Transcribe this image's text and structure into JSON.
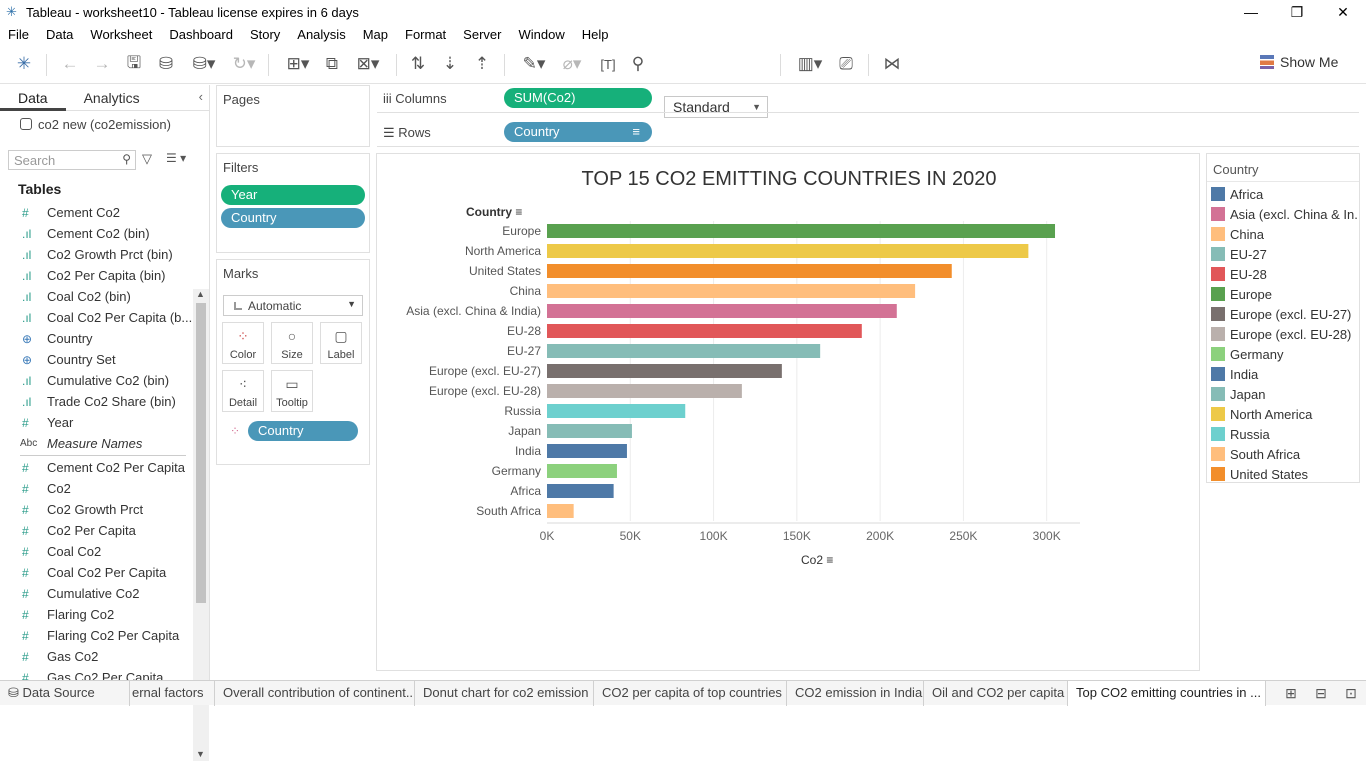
{
  "window": {
    "title": "Tableau - worksheet10 - Tableau license expires in 6 days"
  },
  "menu": [
    "File",
    "Data",
    "Worksheet",
    "Dashboard",
    "Story",
    "Analysis",
    "Map",
    "Format",
    "Server",
    "Window",
    "Help"
  ],
  "toolbar": {
    "fit": "Standard",
    "show_me": "Show Me"
  },
  "left_panel": {
    "tabs": [
      "Data",
      "Analytics"
    ],
    "datasource": "co2 new (co2emission)",
    "search_placeholder": "Search",
    "tables_label": "Tables",
    "fields_dim": [
      {
        "type": "#",
        "name": "Cement Co2"
      },
      {
        "type": "bin",
        "name": "Cement Co2 (bin)"
      },
      {
        "type": "bin",
        "name": "Co2 Growth Prct (bin)"
      },
      {
        "type": "bin",
        "name": "Co2 Per Capita (bin)"
      },
      {
        "type": "bin",
        "name": "Coal Co2 (bin)"
      },
      {
        "type": "bin",
        "name": "Coal Co2 Per Capita (b..."
      },
      {
        "type": "geo",
        "name": "Country"
      },
      {
        "type": "geo",
        "name": "Country Set"
      },
      {
        "type": "bin",
        "name": "Cumulative Co2 (bin)"
      },
      {
        "type": "bin",
        "name": "Trade Co2 Share (bin)"
      },
      {
        "type": "#",
        "name": "Year"
      },
      {
        "type": "Abc",
        "name": "Measure Names"
      }
    ],
    "fields_meas": [
      "Cement Co2 Per Capita",
      "Co2",
      "Co2 Growth Prct",
      "Co2 Per Capita",
      "Coal Co2",
      "Coal Co2 Per Capita",
      "Cumulative Co2",
      "Flaring Co2",
      "Flaring Co2 Per Capita",
      "Gas Co2",
      "Gas Co2 Per Capita"
    ]
  },
  "cards": {
    "pages": "Pages",
    "filters": "Filters",
    "filter_pills": [
      "Year",
      "Country"
    ],
    "marks": "Marks",
    "mark_type": "Automatic",
    "mark_buttons": [
      "Color",
      "Size",
      "Label",
      "Detail",
      "Tooltip"
    ],
    "marks_pill": "Country"
  },
  "shelves": {
    "columns_label": "Columns",
    "columns_pill": "SUM(Co2)",
    "rows_label": "Rows",
    "rows_pill": "Country"
  },
  "chart_data": {
    "type": "bar",
    "orientation": "horizontal",
    "title": "TOP 15 CO2 EMITTING COUNTRIES IN 2020",
    "ylabel": "Country",
    "xlabel": "Co2",
    "xlim": [
      0,
      320000
    ],
    "xticks": [
      0,
      50000,
      100000,
      150000,
      200000,
      250000,
      300000
    ],
    "xtick_labels": [
      "0K",
      "50K",
      "100K",
      "150K",
      "200K",
      "250K",
      "300K"
    ],
    "categories": [
      "Europe",
      "North America",
      "United States",
      "China",
      "Asia (excl. China & India)",
      "EU-28",
      "EU-27",
      "Europe (excl. EU-27)",
      "Europe (excl. EU-28)",
      "Russia",
      "Japan",
      "India",
      "Germany",
      "Africa",
      "South Africa"
    ],
    "values": [
      305000,
      289000,
      243000,
      221000,
      210000,
      189000,
      164000,
      141000,
      117000,
      83000,
      51000,
      48000,
      42000,
      40000,
      16000
    ],
    "colors": [
      "#59a14f",
      "#edc948",
      "#f28e2b",
      "#ffbe7d",
      "#d37295",
      "#e15759",
      "#86bcb6",
      "#79706e",
      "#bab0ac",
      "#6dd0ce",
      "#86bcb6",
      "#4e79a7",
      "#8cd17d",
      "#4e79a7",
      "#ffbe7d"
    ],
    "grid": true
  },
  "legend": {
    "title": "Country",
    "items": [
      {
        "label": "Africa",
        "color": "#4e79a7"
      },
      {
        "label": "Asia (excl. China & In..",
        "color": "#d37295"
      },
      {
        "label": "China",
        "color": "#ffbe7d"
      },
      {
        "label": "EU-27",
        "color": "#86bcb6"
      },
      {
        "label": "EU-28",
        "color": "#e15759"
      },
      {
        "label": "Europe",
        "color": "#59a14f"
      },
      {
        "label": "Europe (excl. EU-27)",
        "color": "#79706e"
      },
      {
        "label": "Europe (excl. EU-28)",
        "color": "#bab0ac"
      },
      {
        "label": "Germany",
        "color": "#8cd17d"
      },
      {
        "label": "India",
        "color": "#4e79a7"
      },
      {
        "label": "Japan",
        "color": "#86bcb6"
      },
      {
        "label": "North America",
        "color": "#edc948"
      },
      {
        "label": "Russia",
        "color": "#6dd0ce"
      },
      {
        "label": "South Africa",
        "color": "#ffbe7d"
      },
      {
        "label": "United States",
        "color": "#f28e2b"
      }
    ]
  },
  "bottom_tabs": [
    "Data Source",
    "ernal factors",
    "Overall contribution of continent...",
    "Donut chart for co2 emission",
    "CO2 per capita of top countries",
    "CO2 emission in India",
    "Oil and CO2 per capita",
    "Top CO2 emitting countries in ..."
  ]
}
